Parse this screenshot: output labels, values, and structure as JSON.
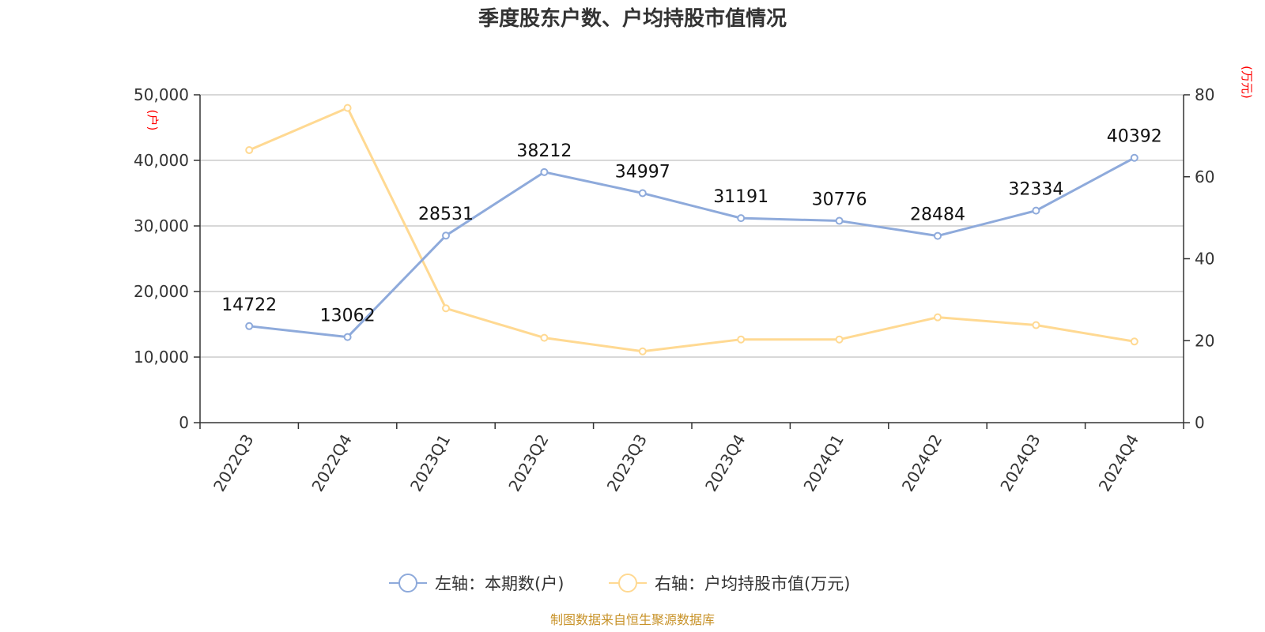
{
  "chart_data": {
    "type": "line",
    "title": "季度股东户数、户均持股市值情况",
    "categories": [
      "2022Q3",
      "2022Q4",
      "2023Q1",
      "2023Q2",
      "2023Q3",
      "2023Q4",
      "2024Q1",
      "2024Q2",
      "2024Q3",
      "2024Q4"
    ],
    "left_axis": {
      "unit": "(户)",
      "ylim": [
        0,
        50000
      ],
      "ticks": [
        "0",
        "10,000",
        "20,000",
        "30,000",
        "40,000",
        "50,000"
      ]
    },
    "right_axis": {
      "unit": "(万元)",
      "ylim": [
        0,
        80
      ],
      "ticks": [
        "0",
        "20",
        "40",
        "60",
        "80"
      ]
    },
    "series": [
      {
        "name": "左轴：本期数(户)",
        "axis": "left",
        "color": "#8eaadb",
        "values": [
          14722,
          13062,
          28531,
          38212,
          34997,
          31191,
          30776,
          28484,
          32334,
          40392
        ],
        "labels": [
          "14722",
          "13062",
          "28531",
          "38212",
          "34997",
          "31191",
          "30776",
          "28484",
          "32334",
          "40392"
        ]
      },
      {
        "name": "右轴：户均持股市值(万元)",
        "axis": "right",
        "color": "#ffd992",
        "values": [
          66.5,
          76.8,
          27.9,
          20.7,
          17.4,
          20.3,
          20.3,
          25.7,
          23.8,
          19.8
        ]
      }
    ],
    "grid": true,
    "legend_position": "bottom-center"
  },
  "source": "制图数据来自恒生聚源数据库"
}
